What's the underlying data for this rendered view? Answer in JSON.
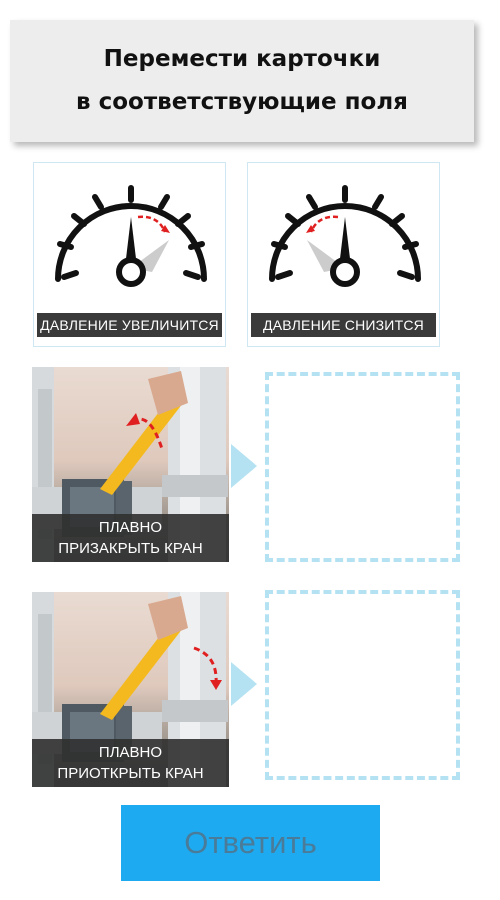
{
  "header": {
    "line1": "Перемести карточки",
    "line2": "в соответствующие поля"
  },
  "gauges": [
    {
      "label": "ДАВЛЕНИЕ УВЕЛИЧИТСЯ",
      "icon": "pressure-gauge-icon",
      "direction": "increase"
    },
    {
      "label": "ДАВЛЕНИЕ СНИЗИТСЯ",
      "icon": "pressure-gauge-icon",
      "direction": "decrease"
    }
  ],
  "cards": [
    {
      "line1": "ПЛАВНО",
      "line2": "ПРИЗАКРЫТЬ КРАН",
      "icon": "valve-handle-icon"
    },
    {
      "line1": "ПЛАВНО",
      "line2": "ПРИОТКРЫТЬ КРАН",
      "icon": "valve-handle-icon"
    }
  ],
  "answer_button": {
    "label": "Ответить"
  },
  "colors": {
    "accent": "#1eaaf0",
    "dropzone": "#b5e2f2",
    "arrow_red": "#e02020",
    "handle_yellow": "#f4b91e"
  }
}
